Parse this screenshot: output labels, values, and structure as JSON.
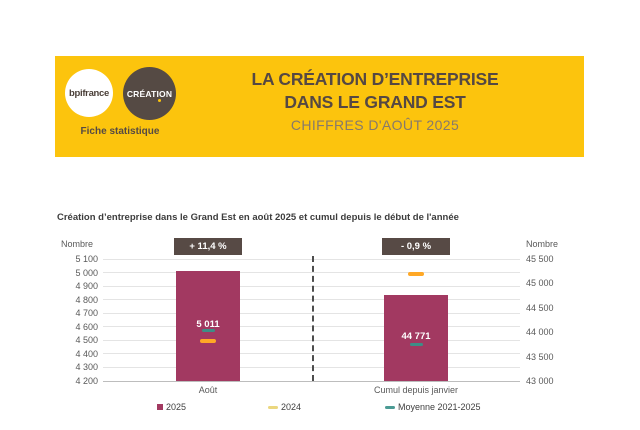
{
  "header": {
    "logo_primary": "bpifrance",
    "logo_secondary": "CRÉATION",
    "tagline": "Fiche statistique",
    "title_line1": "LA CRÉATION D’ENTREPRISE",
    "title_line2": "DANS LE GRAND EST",
    "subtitle": "CHIFFRES D'AOÛT 2025"
  },
  "chart_data": {
    "type": "bar",
    "title": "Création d’entreprise dans le Grand Est en août 2025 et cumul depuis le début de l'année",
    "left_axis": {
      "label": "Nombre",
      "min": 4200,
      "max": 5100,
      "ticks": [
        "5 100",
        "5 000",
        "4 900",
        "4 800",
        "4 700",
        "4 600",
        "4 500",
        "4 400",
        "4 300",
        "4 200"
      ]
    },
    "right_axis": {
      "label": "Nombre",
      "min": 43000,
      "max": 45500,
      "ticks": [
        "45 500",
        "45 000",
        "44 500",
        "44 000",
        "43 500",
        "43 000"
      ]
    },
    "groups": [
      {
        "category": "Août",
        "axis": "left",
        "badge": "+ 11,4 %",
        "value_2025": 5011,
        "value_2025_label": "5 011",
        "value_2024": 4498,
        "value_moyenne_2021_2025": 4570
      },
      {
        "category": "Cumul depuis janvier",
        "axis": "right",
        "badge": "- 0,9 %",
        "value_2025": 44771,
        "value_2025_label": "44 771",
        "value_2024": 45190,
        "value_moyenne_2021_2025": 43740
      }
    ],
    "legend": [
      {
        "label": "2025",
        "swatch": "square",
        "color": "#A23961"
      },
      {
        "label": "2024",
        "swatch": "dash",
        "color": "#EBD77F"
      },
      {
        "label": "Moyenne 2021-2025",
        "swatch": "dash",
        "color": "#4B9B94"
      }
    ],
    "colors": {
      "bar_2025": "#A23961",
      "marker_2024": "#FFA826",
      "marker_moyenne": "#3D8E87",
      "badge_bg": "#574A45",
      "banner_yellow": "#FCC40D"
    }
  }
}
